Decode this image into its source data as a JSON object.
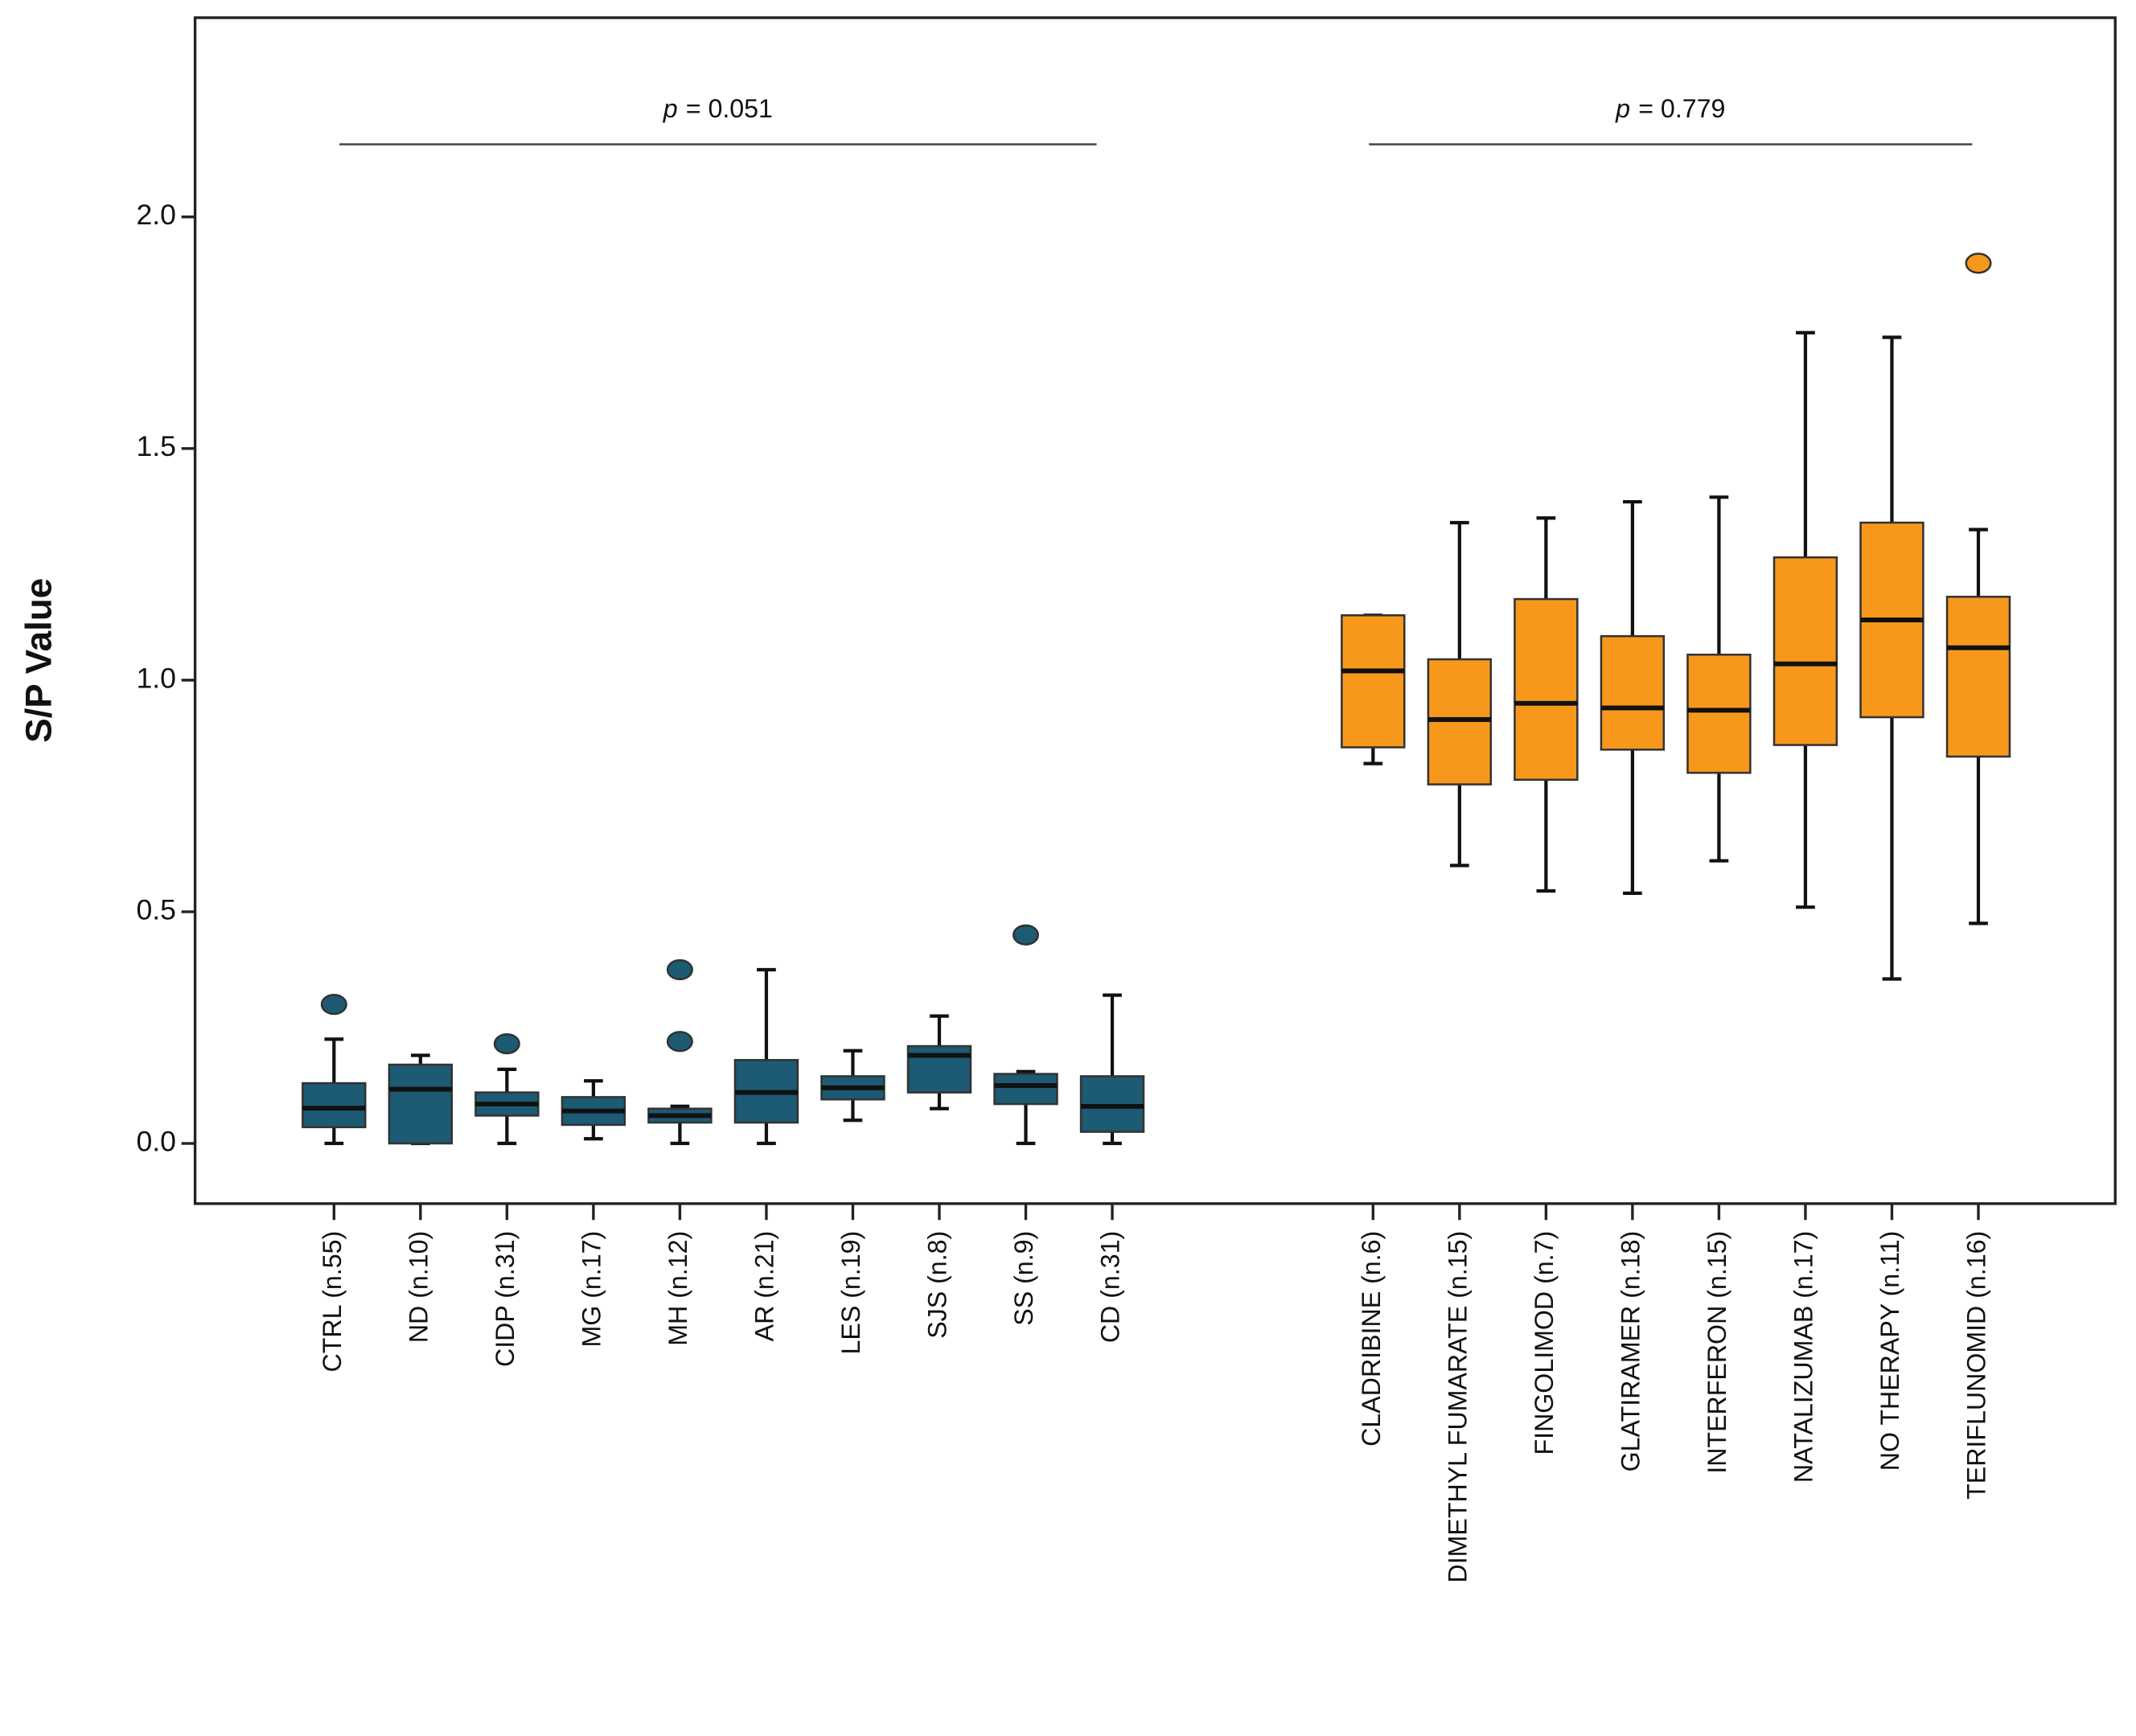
{
  "chart_data": {
    "type": "box",
    "ylabel": "S/P Value",
    "ylim": [
      -0.13,
      2.43
    ],
    "yticks": [
      {
        "value": 0,
        "label": "0.0"
      },
      {
        "value": 0.5,
        "label": "0.5"
      },
      {
        "value": 1,
        "label": "1.0"
      },
      {
        "value": 1.5,
        "label": "1.5"
      },
      {
        "value": 2,
        "label": "2.0"
      }
    ],
    "groups": [
      {
        "color": "#1d5a74",
        "annotation": {
          "symbol": "p",
          "text": "= 0.051"
        },
        "categories": [
          "CTRL (n.55)",
          "ND (n.10)",
          "CIDP (n.31)",
          "MG (n.17)",
          "MH (n.12)",
          "AR (n.21)",
          "LES (n.19)",
          "SJS (n.8)",
          "SS (n.9)",
          "CD (n.31)"
        ],
        "boxes": [
          {
            "min": 0,
            "q1": 0.035,
            "median": 0.076,
            "q3": 0.13,
            "max": 0.225,
            "outliers": [
              0.3
            ]
          },
          {
            "min": 0,
            "q1": 0,
            "median": 0.117,
            "q3": 0.17,
            "max": 0.19,
            "outliers": []
          },
          {
            "min": 0,
            "q1": 0.06,
            "median": 0.085,
            "q3": 0.11,
            "max": 0.16,
            "outliers": [
              0.215
            ]
          },
          {
            "min": 0.01,
            "q1": 0.04,
            "median": 0.07,
            "q3": 0.1,
            "max": 0.135,
            "outliers": []
          },
          {
            "min": 0,
            "q1": 0.045,
            "median": 0.06,
            "q3": 0.075,
            "max": 0.08,
            "outliers": [
              0.22,
              0.375
            ]
          },
          {
            "min": 0,
            "q1": 0.045,
            "median": 0.11,
            "q3": 0.18,
            "max": 0.375,
            "outliers": []
          },
          {
            "min": 0.05,
            "q1": 0.095,
            "median": 0.12,
            "q3": 0.145,
            "max": 0.2,
            "outliers": []
          },
          {
            "min": 0.075,
            "q1": 0.11,
            "median": 0.19,
            "q3": 0.21,
            "max": 0.275,
            "outliers": []
          },
          {
            "min": 0,
            "q1": 0.085,
            "median": 0.125,
            "q3": 0.15,
            "max": 0.155,
            "outliers": [
              0.45
            ]
          },
          {
            "min": 0,
            "q1": 0.025,
            "median": 0.08,
            "q3": 0.145,
            "max": 0.32,
            "outliers": []
          }
        ]
      },
      {
        "color": "#f7981d",
        "annotation": {
          "symbol": "p",
          "text": "= 0.779"
        },
        "categories": [
          "CLADRIBINE (n.6)",
          "DIMETHYL FUMARATE (n.15)",
          "FINGOLIMOD (n.7)",
          "GLATIRAMER (n.18)",
          "INTERFERON  (n.15)",
          "NATALIZUMAB (n.17)",
          "NO THERAPY (n.11)",
          "TERIFLUNOMID (n.16)"
        ],
        "boxes": [
          {
            "min": 0.82,
            "q1": 0.855,
            "median": 1.02,
            "q3": 1.14,
            "max": 1.14,
            "outliers": []
          },
          {
            "min": 0.6,
            "q1": 0.775,
            "median": 0.915,
            "q3": 1.045,
            "max": 1.34,
            "outliers": []
          },
          {
            "min": 0.545,
            "q1": 0.785,
            "median": 0.95,
            "q3": 1.175,
            "max": 1.35,
            "outliers": []
          },
          {
            "min": 0.54,
            "q1": 0.85,
            "median": 0.94,
            "q3": 1.095,
            "max": 1.385,
            "outliers": []
          },
          {
            "min": 0.61,
            "q1": 0.8,
            "median": 0.935,
            "q3": 1.055,
            "max": 1.395,
            "outliers": []
          },
          {
            "min": 0.51,
            "q1": 0.86,
            "median": 1.035,
            "q3": 1.265,
            "max": 1.75,
            "outliers": []
          },
          {
            "min": 0.355,
            "q1": 0.92,
            "median": 1.13,
            "q3": 1.34,
            "max": 1.74,
            "outliers": []
          },
          {
            "min": 0.475,
            "q1": 0.835,
            "median": 1.07,
            "q3": 1.18,
            "max": 1.325,
            "outliers": [
              1.9
            ]
          }
        ]
      }
    ]
  }
}
